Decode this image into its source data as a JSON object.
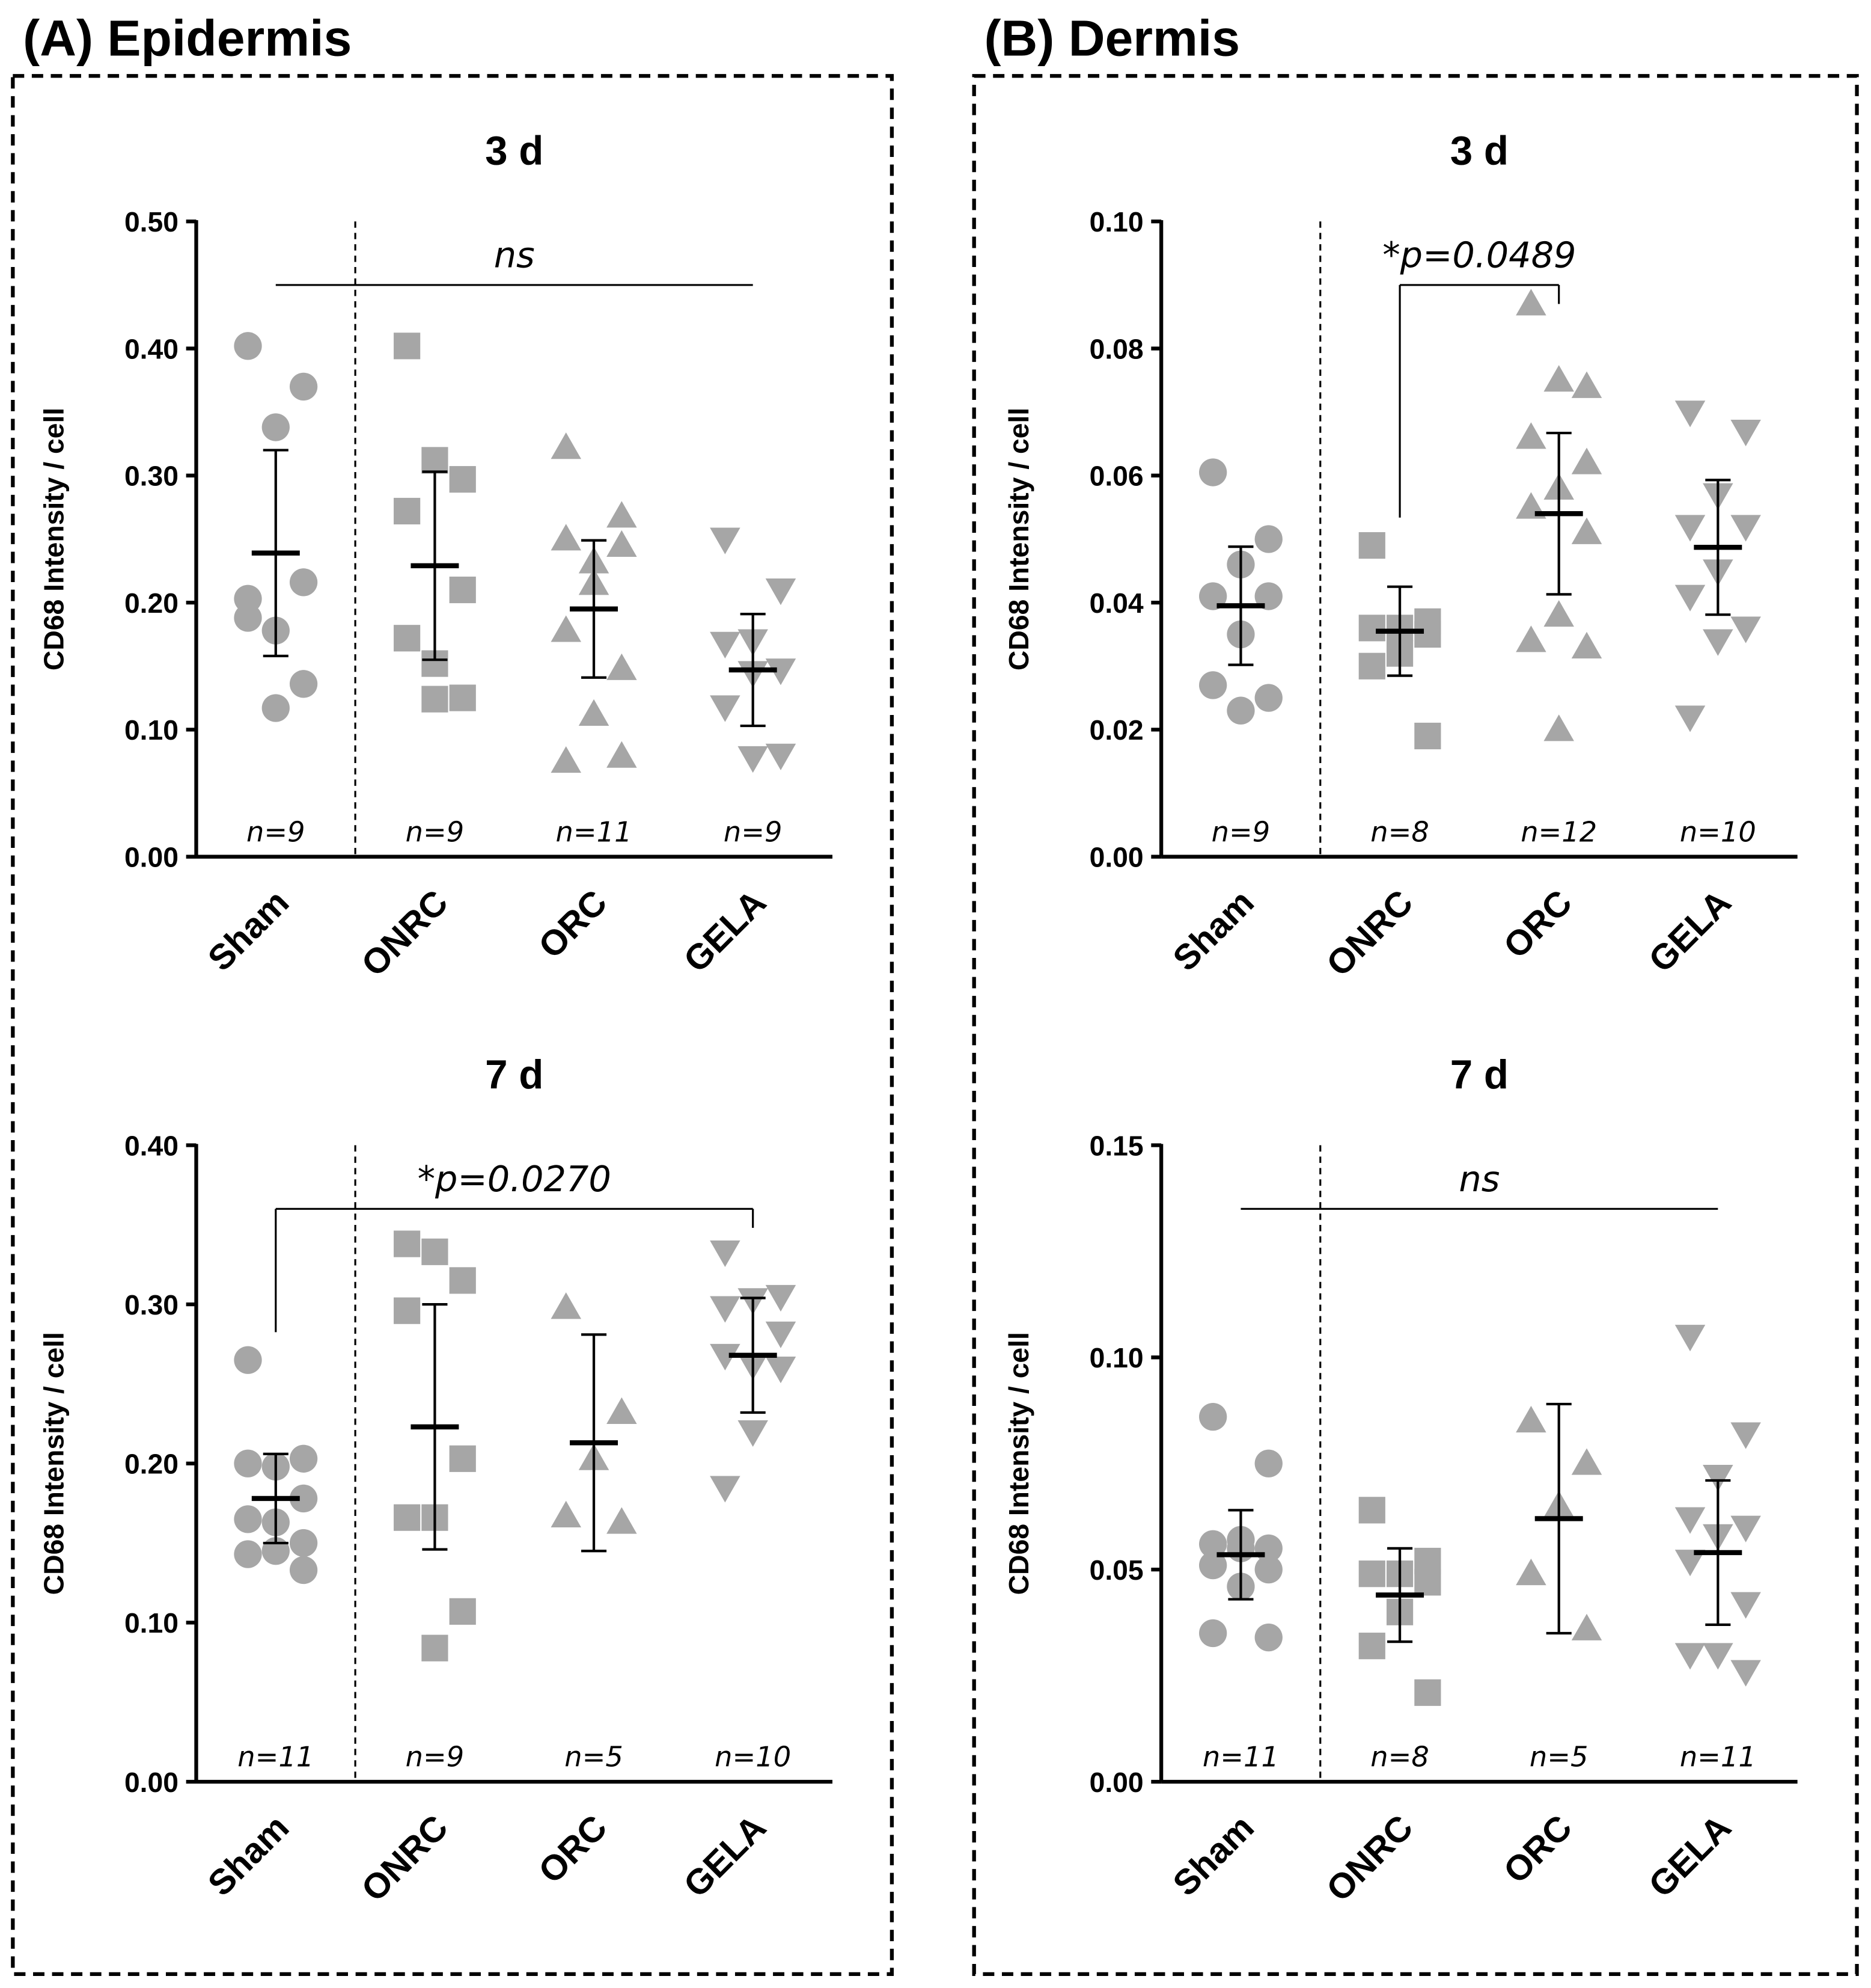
{
  "panels": [
    "(A) Epidermis",
    "(B) Dermis"
  ],
  "chart_data": [
    {
      "type": "dot",
      "title": "3 d",
      "ylabel": "CD68 Intensity / cell",
      "categories": [
        "Sham",
        "ONRC",
        "ORC",
        "GELA"
      ],
      "n_labels": [
        "n=9",
        "n=9",
        "n=11",
        "n=9"
      ],
      "values": [
        [
          0.402,
          0.37,
          0.338,
          0.203,
          0.216,
          0.178,
          0.188,
          0.136,
          0.117
        ],
        [
          0.402,
          0.297,
          0.312,
          0.272,
          0.21,
          0.152,
          0.172,
          0.125,
          0.124
        ],
        [
          0.322,
          0.268,
          0.232,
          0.25,
          0.245,
          0.215,
          0.178,
          0.148,
          0.112,
          0.075,
          0.079
        ],
        [
          0.25,
          0.21,
          0.17,
          0.168,
          0.147,
          0.145,
          0.118,
          0.08,
          0.078
        ]
      ],
      "means": [
        0.239,
        0.229,
        0.195,
        0.147
      ],
      "errors": [
        0.081,
        0.074,
        0.054,
        0.044
      ],
      "ylim": [
        0,
        0.5
      ],
      "yticks": [
        {
          "value": 0,
          "label": "0.00"
        },
        {
          "value": 0.1,
          "label": "0.10"
        },
        {
          "value": 0.2,
          "label": "0.20"
        },
        {
          "value": 0.3,
          "label": "0.30"
        },
        {
          "value": 0.4,
          "label": "0.40"
        },
        {
          "value": 0.5,
          "label": "0.50"
        }
      ],
      "color": "#a6a6a6",
      "markers": [
        "circle",
        "square",
        "triangle",
        "triangle-down"
      ],
      "annotation": {
        "text": "ns",
        "between": [
          0,
          3
        ],
        "bracket": false
      }
    },
    {
      "type": "dot",
      "title": "7 d",
      "ylabel": "CD68 Intensity / cell",
      "categories": [
        "Sham",
        "ONRC",
        "ORC",
        "GELA"
      ],
      "n_labels": [
        "n=11",
        "n=9",
        "n=5",
        "n=10"
      ],
      "values": [
        [
          0.265,
          0.203,
          0.198,
          0.2,
          0.178,
          0.163,
          0.165,
          0.15,
          0.145,
          0.143,
          0.133
        ],
        [
          0.338,
          0.315,
          0.333,
          0.296,
          0.203,
          0.166,
          0.166,
          0.107,
          0.084
        ],
        [
          0.298,
          0.232,
          0.203,
          0.167,
          0.163
        ],
        [
          0.333,
          0.305,
          0.303,
          0.298,
          0.282,
          0.262,
          0.268,
          0.26,
          0.22,
          0.185
        ]
      ],
      "means": [
        0.178,
        0.223,
        0.213,
        0.268
      ],
      "errors": [
        0.028,
        0.077,
        0.068,
        0.036
      ],
      "ylim": [
        0,
        0.4
      ],
      "yticks": [
        {
          "value": 0,
          "label": "0.00"
        },
        {
          "value": 0.1,
          "label": "0.10"
        },
        {
          "value": 0.2,
          "label": "0.20"
        },
        {
          "value": 0.3,
          "label": "0.30"
        },
        {
          "value": 0.4,
          "label": "0.40"
        }
      ],
      "color": "#a6a6a6",
      "markers": [
        "circle",
        "square",
        "triangle",
        "triangle-down"
      ],
      "annotation": {
        "text": "*p=0.0270",
        "between": [
          0,
          3
        ],
        "bracket": true
      }
    },
    {
      "type": "dot",
      "title": "3 d",
      "ylabel": "CD68 Intensity / cell",
      "categories": [
        "Sham",
        "ONRC",
        "ORC",
        "GELA"
      ],
      "n_labels": [
        "n=9",
        "n=8",
        "n=12",
        "n=10"
      ],
      "values": [
        [
          0.0605,
          0.05,
          0.046,
          0.041,
          0.041,
          0.035,
          0.027,
          0.025,
          0.023
        ],
        [
          0.049,
          0.037,
          0.036,
          0.036,
          0.035,
          0.032,
          0.03,
          0.019
        ],
        [
          0.087,
          0.074,
          0.075,
          0.066,
          0.062,
          0.058,
          0.055,
          0.051,
          0.038,
          0.034,
          0.033,
          0.02
        ],
        [
          0.07,
          0.067,
          0.057,
          0.052,
          0.052,
          0.045,
          0.041,
          0.036,
          0.034,
          0.022
        ]
      ],
      "means": [
        0.0395,
        0.0355,
        0.054,
        0.0487
      ],
      "errors": [
        0.0093,
        0.007,
        0.0127,
        0.0106
      ],
      "ylim": [
        0,
        0.1
      ],
      "yticks": [
        {
          "value": 0,
          "label": "0.00"
        },
        {
          "value": 0.02,
          "label": "0.02"
        },
        {
          "value": 0.04,
          "label": "0.04"
        },
        {
          "value": 0.06,
          "label": "0.06"
        },
        {
          "value": 0.08,
          "label": "0.08"
        },
        {
          "value": 0.1,
          "label": "0.10"
        }
      ],
      "color": "#a6a6a6",
      "markers": [
        "circle",
        "square",
        "triangle",
        "triangle-down"
      ],
      "annotation": {
        "text": "*p=0.0489",
        "between": [
          1,
          2
        ],
        "bracket": true
      }
    },
    {
      "type": "dot",
      "title": "7 d",
      "ylabel": "CD68 Intensity / cell",
      "categories": [
        "Sham",
        "ONRC",
        "ORC",
        "GELA"
      ],
      "n_labels": [
        "n=11",
        "n=8",
        "n=5",
        "n=11"
      ],
      "values": [
        [
          0.086,
          0.075,
          0.057,
          0.056,
          0.055,
          0.055,
          0.051,
          0.05,
          0.046,
          0.035,
          0.034
        ],
        [
          0.064,
          0.052,
          0.049,
          0.049,
          0.047,
          0.04,
          0.032,
          0.021
        ],
        [
          0.085,
          0.075,
          0.065,
          0.049,
          0.036
        ],
        [
          0.105,
          0.082,
          0.072,
          0.062,
          0.06,
          0.058,
          0.052,
          0.042,
          0.03,
          0.03,
          0.026
        ]
      ],
      "means": [
        0.0535,
        0.044,
        0.062,
        0.054
      ],
      "errors": [
        0.0105,
        0.011,
        0.027,
        0.017
      ],
      "ylim": [
        0,
        0.15
      ],
      "yticks": [
        {
          "value": 0,
          "label": "0.00"
        },
        {
          "value": 0.05,
          "label": "0.05"
        },
        {
          "value": 0.1,
          "label": "0.10"
        },
        {
          "value": 0.15,
          "label": "0.15"
        }
      ],
      "color": "#a6a6a6",
      "markers": [
        "circle",
        "square",
        "triangle",
        "triangle-down"
      ],
      "annotation": {
        "text": "ns",
        "between": [
          0,
          3
        ],
        "bracket": false
      }
    }
  ]
}
